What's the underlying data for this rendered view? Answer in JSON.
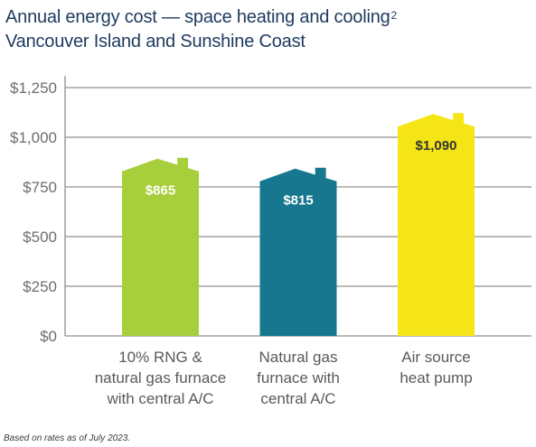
{
  "colors": {
    "title": "#1d3a5e",
    "grid": "#a7a29d",
    "tick_text": "#6d6d6d",
    "category_text": "#5a5a5a",
    "footnote": "#3a3a3a"
  },
  "chart_data": {
    "type": "bar",
    "title": "Annual energy cost — space heating and cooling",
    "title_superscript": "2",
    "subtitle": "Vancouver Island and Sunshine Coast",
    "footnote": "Based on rates as of July 2023.",
    "categories": [
      "10% RNG &\nnatural gas furnace\nwith central A/C",
      "Natural gas\nfurnace with\ncentral A/C",
      "Air source\nheat pump"
    ],
    "values": [
      865,
      815,
      1090
    ],
    "value_labels": [
      "$865",
      "$815",
      "$1,090"
    ],
    "bar_colors": [
      "#a7cf3b",
      "#17778f",
      "#f6e516"
    ],
    "value_label_colors": [
      "#ffffff",
      "#ffffff",
      "#333333"
    ],
    "yticks": [
      0,
      250,
      500,
      750,
      1000,
      1250
    ],
    "ytick_labels": [
      "$0",
      "$250",
      "$500",
      "$750",
      "$1,000",
      "$1,250"
    ],
    "ylim": [
      0,
      1250
    ],
    "xlabel": "",
    "ylabel": "",
    "grid": true,
    "legend": "none"
  }
}
